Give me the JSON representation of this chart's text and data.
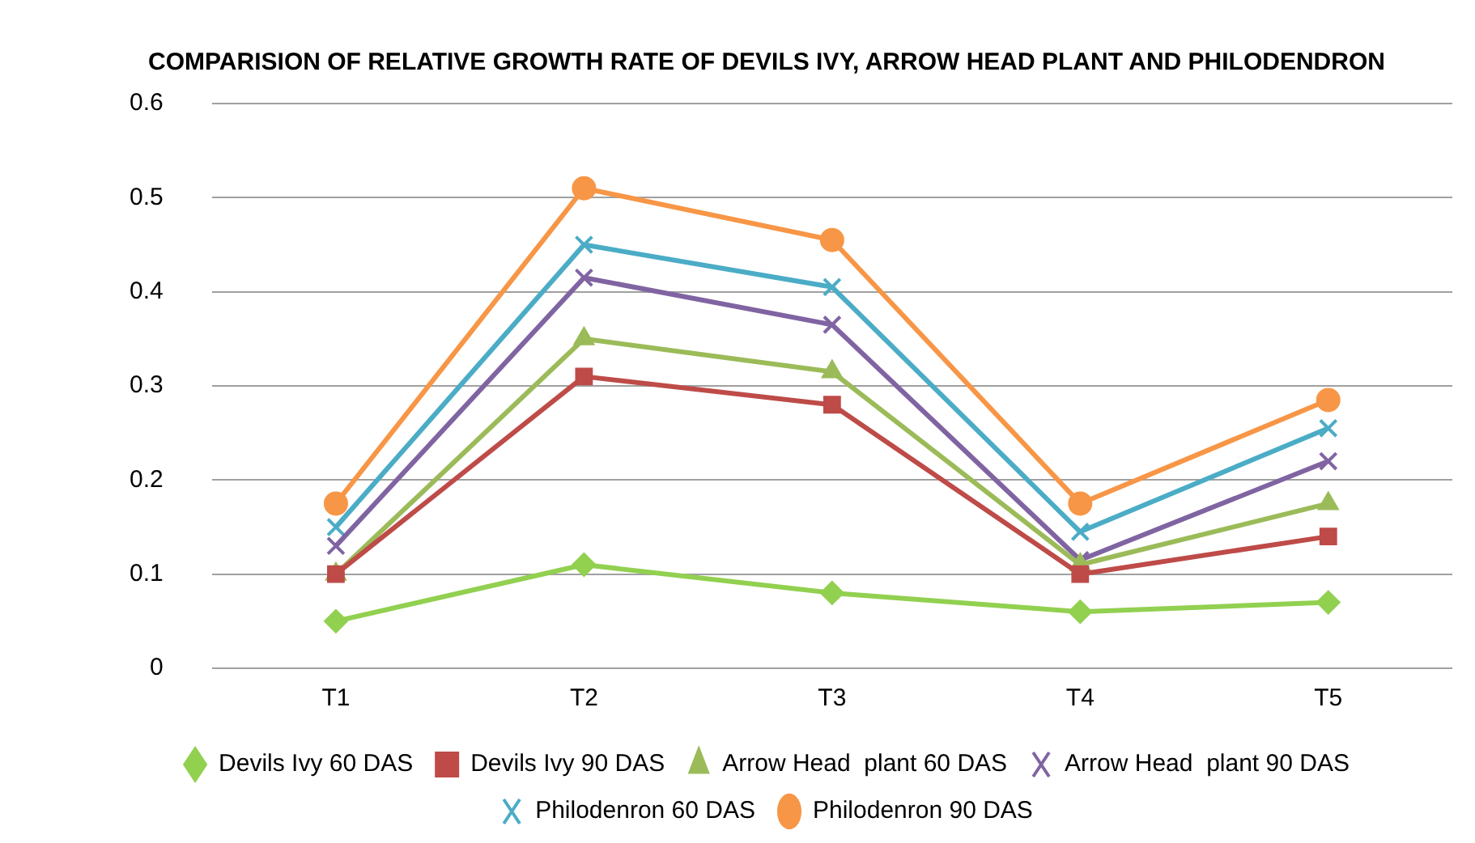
{
  "chart_data": {
    "type": "line",
    "title": "COMPARISION OF RELATIVE GROWTH RATE OF DEVILS IVY, ARROW HEAD PLANT AND PHILODENDRON",
    "categories": [
      "T1",
      "T2",
      "T3",
      "T4",
      "T5"
    ],
    "series": [
      {
        "name": "Devils Ivy 60 DAS",
        "color": "#92d050",
        "marker": "diamond",
        "values": [
          0.05,
          0.11,
          0.08,
          0.06,
          0.07
        ]
      },
      {
        "name": "Devils Ivy 90 DAS",
        "color": "#be4b48",
        "marker": "square",
        "values": [
          0.1,
          0.31,
          0.28,
          0.1,
          0.14
        ]
      },
      {
        "name": "Arrow Head  plant 60 DAS",
        "color": "#9bbb59",
        "marker": "triangle",
        "values": [
          0.1,
          0.35,
          0.315,
          0.11,
          0.175
        ]
      },
      {
        "name": "Arrow Head  plant 90 DAS",
        "color": "#8064a2",
        "marker": "cross",
        "values": [
          0.13,
          0.415,
          0.365,
          0.115,
          0.22
        ]
      },
      {
        "name": "Philodenron 60 DAS",
        "color": "#4bacc6",
        "marker": "cross",
        "values": [
          0.15,
          0.45,
          0.405,
          0.145,
          0.255
        ]
      },
      {
        "name": "Philodenron 90 DAS",
        "color": "#f79646",
        "marker": "circle",
        "values": [
          0.175,
          0.51,
          0.455,
          0.175,
          0.285
        ]
      }
    ],
    "ylim": [
      0,
      0.6
    ],
    "yticks": [
      0,
      0.1,
      0.2,
      0.3,
      0.4,
      0.5,
      0.6
    ],
    "grid": "y",
    "legend": "bottom",
    "line_style": "solid"
  }
}
